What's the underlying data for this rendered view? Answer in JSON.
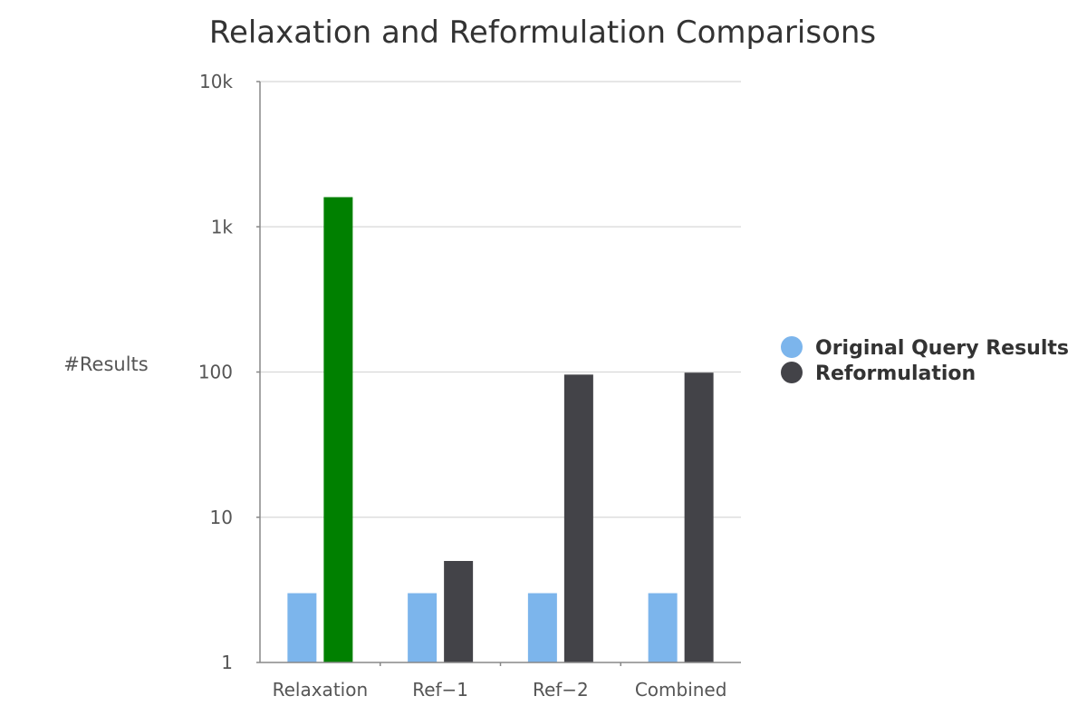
{
  "chart_data": {
    "type": "bar",
    "title": "Relaxation and Reformulation Comparisons",
    "ylabel": "#Results",
    "xlabel": "",
    "yscale": "log",
    "ylim": [
      1,
      10000
    ],
    "ytick_values": [
      1,
      10,
      100,
      1000,
      10000
    ],
    "ytick_labels": [
      "1",
      "10",
      "100",
      "1k",
      "10k"
    ],
    "categories": [
      "Relaxation",
      "Ref-1",
      "Ref-2",
      "Combined"
    ],
    "series": [
      {
        "name": "Original Query Results",
        "color": "#7cb5ec",
        "values": [
          3,
          3,
          3,
          3
        ]
      },
      {
        "name": "Reformulation",
        "color": "#434348",
        "values": [
          1600,
          5,
          96,
          99
        ],
        "point_colors": [
          "#008000",
          "#434348",
          "#434348",
          "#434348"
        ]
      }
    ],
    "grid": true,
    "legend_position": "right"
  }
}
